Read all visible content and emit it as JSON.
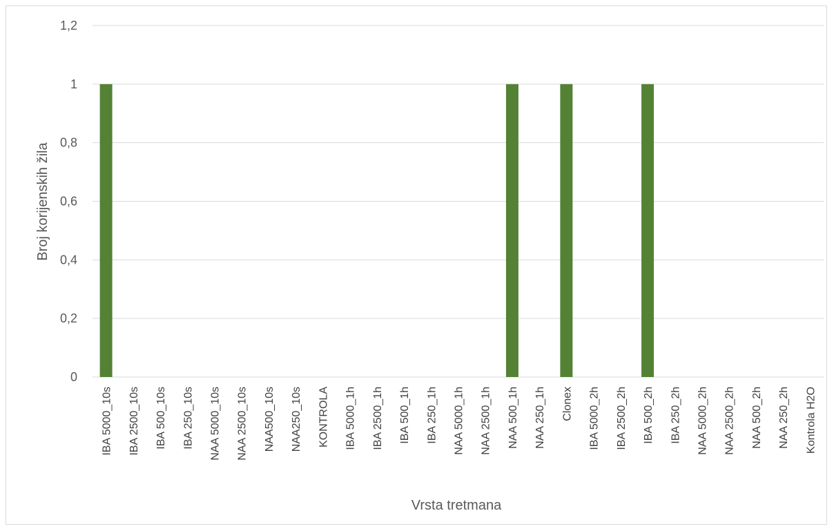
{
  "chart_data": {
    "type": "bar",
    "title": "",
    "xlabel": "Vrsta tretmana",
    "ylabel": "Broj korijenskih žila",
    "ylim": [
      0,
      1.2
    ],
    "yticks": [
      "0",
      "0,2",
      "0,4",
      "0,6",
      "0,8",
      "1",
      "1,2"
    ],
    "ytick_values": [
      0,
      0.2,
      0.4,
      0.6,
      0.8,
      1,
      1.2
    ],
    "grid": true,
    "legend": "none",
    "bar_color": "#548235",
    "categories": [
      "IBA 5000_10s",
      "IBA 2500_10s",
      "IBA 500_10s",
      "IBA 250_10s",
      "NAA 5000_10s",
      "NAA 2500_10s",
      "NAA500_10s",
      "NAA250_10s",
      "KONTROLA",
      "IBA 5000_1h",
      "IBA 2500_1h",
      "IBA 500_1h",
      "IBA 250_1h",
      "NAA 5000_1h",
      "NAA 2500_1h",
      "NAA 500_1h",
      "NAA 250_1h",
      "Clonex",
      "IBA 5000_2h",
      "IBA 2500_2h",
      "IBA 500_2h",
      "IBA 250_2h",
      "NAA 5000_2h",
      "NAA 2500_2h",
      "NAA 500_2h",
      "NAA 250_2h",
      "Kontrola H2O"
    ],
    "values": [
      1,
      0,
      0,
      0,
      0,
      0,
      0,
      0,
      0,
      0,
      0,
      0,
      0,
      0,
      0,
      1,
      0,
      1,
      0,
      0,
      1,
      0,
      0,
      0,
      0,
      0,
      0
    ]
  }
}
